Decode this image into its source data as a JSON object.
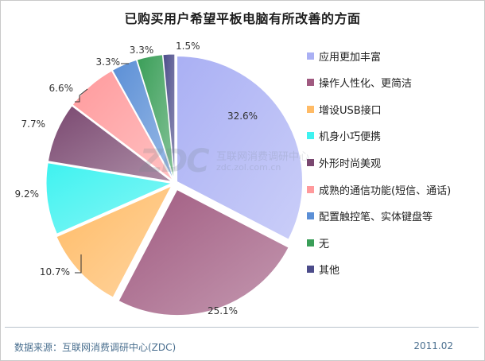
{
  "chart_data": {
    "type": "pie",
    "title": "已购买用户希望平板电脑有所改善的方面",
    "categories": [
      "应用更加丰富",
      "操作人性化、更简洁",
      "增设USB接口",
      "机身小巧便携",
      "外形时尚美观",
      "成熟的通信功能(短信、通话)",
      "配置触控笔、实体键盘等",
      "无",
      "其他"
    ],
    "values": [
      32.6,
      25.1,
      10.7,
      9.2,
      7.7,
      6.6,
      3.3,
      3.3,
      1.5
    ],
    "value_labels": [
      "32.6%",
      "25.1%",
      "10.7%",
      "9.2%",
      "7.7%",
      "6.6%",
      "3.3%",
      "3.3%",
      "1.5%"
    ],
    "colors": [
      "#aab0f4",
      "#a05a80",
      "#ffbb66",
      "#3ff2f0",
      "#7a4870",
      "#ff9a9c",
      "#5b8fd6",
      "#3a9e58",
      "#4c4c8a"
    ],
    "legend_position": "right"
  },
  "watermark": {
    "main": "ZDC",
    "side": "互联网消费调研中心",
    "url": "zdc.zol.com.cn"
  },
  "footer": {
    "source": "数据来源：互联网消费调研中心(ZDC)",
    "date": "2011.02"
  }
}
